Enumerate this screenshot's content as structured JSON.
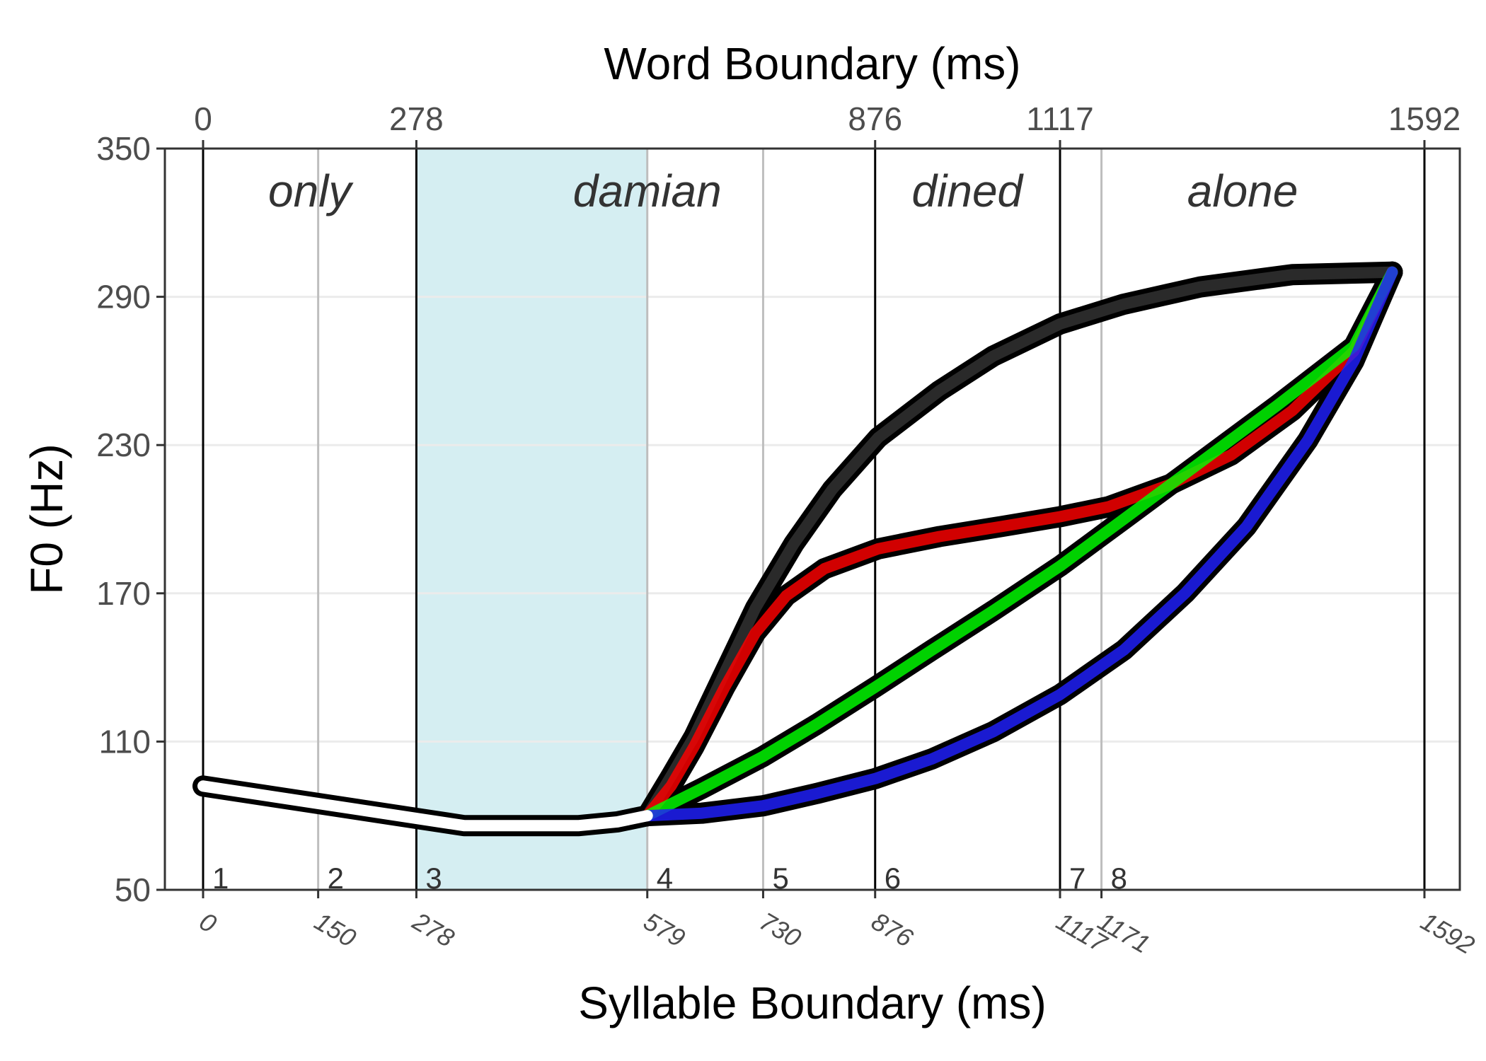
{
  "chart_data": {
    "type": "line",
    "title": "",
    "xlabel": "Syllable Boundary (ms)",
    "x2label": "Word Boundary (ms)",
    "ylabel": "F0 (Hz)",
    "xlim": [
      0,
      1592
    ],
    "ylim": [
      50,
      350
    ],
    "yticks": [
      50,
      110,
      170,
      230,
      290,
      350
    ],
    "grid": true,
    "word_boundaries": [
      0,
      278,
      876,
      1117,
      1592
    ],
    "word_boundary_labels": [
      "0",
      "278",
      "876",
      "1117",
      "1592"
    ],
    "syllable_boundaries": [
      0,
      150,
      278,
      579,
      730,
      876,
      1117,
      1171,
      1592
    ],
    "syllable_boundary_labels": [
      "0",
      "150",
      "278",
      "579",
      "730",
      "876",
      "1117",
      "1171",
      "1592"
    ],
    "syllable_numbers": [
      "1",
      "2",
      "3",
      "4",
      "5",
      "6",
      "7",
      "8"
    ],
    "words": [
      {
        "text": "only",
        "x": 139
      },
      {
        "text": "damian",
        "x": 579
      },
      {
        "text": "dined",
        "x": 996
      },
      {
        "text": "alone",
        "x": 1355
      }
    ],
    "highlight_region": [
      278,
      579
    ],
    "colors": {
      "highlight": "#d5eef2",
      "black": "#333333",
      "red": "#ff0000",
      "green": "#00ff00",
      "blue": "#2020ff",
      "white": "#ffffff"
    },
    "shared_contour": {
      "x": [
        0,
        340,
        490,
        540,
        579
      ],
      "y": [
        92,
        76,
        76,
        77.5,
        80
      ]
    },
    "series": [
      {
        "color": "black",
        "x": [
          579,
          610,
          640,
          680,
          720,
          770,
          820,
          880,
          960,
          1030,
          1117,
          1200,
          1300,
          1420,
          1550
        ],
        "y": [
          80,
          96,
          112,
          138,
          164,
          190,
          212,
          233,
          252,
          266,
          279,
          287,
          294,
          299,
          300
        ]
      },
      {
        "color": "red",
        "x": [
          579,
          610,
          640,
          680,
          720,
          760,
          810,
          880,
          960,
          1040,
          1117,
          1180,
          1260,
          1340,
          1420,
          1500,
          1550
        ],
        "y": [
          80,
          92,
          108,
          132,
          154,
          169,
          180,
          188,
          193,
          197,
          201,
          205,
          214,
          226,
          244,
          268,
          300
        ]
      },
      {
        "color": "green",
        "x": [
          579,
          650,
          730,
          800,
          876,
          950,
          1030,
          1117,
          1200,
          1300,
          1400,
          1500,
          1550
        ],
        "y": [
          80,
          91,
          104,
          117,
          132,
          147,
          163,
          181,
          200,
          223,
          246,
          270,
          300
        ]
      },
      {
        "color": "blue",
        "x": [
          579,
          650,
          730,
          800,
          876,
          950,
          1030,
          1117,
          1200,
          1280,
          1360,
          1440,
          1500,
          1550
        ],
        "y": [
          80,
          81,
          84,
          89,
          95,
          103,
          114,
          129,
          147,
          170,
          197,
          232,
          264,
          300
        ]
      }
    ]
  }
}
